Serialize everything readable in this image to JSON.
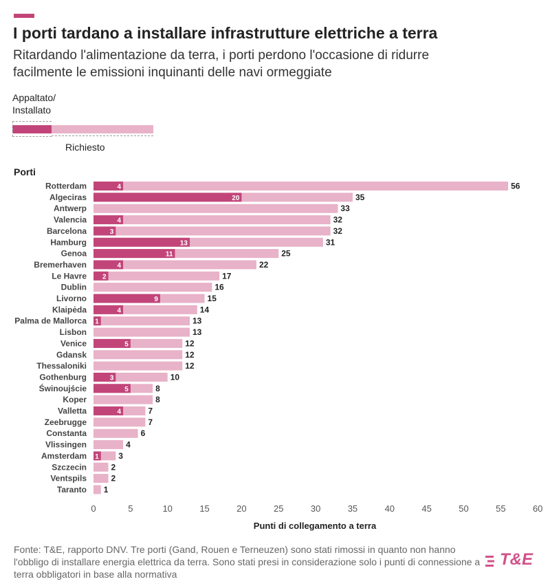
{
  "header": {
    "title": "I porti tardano a installare infrastrutture elettriche a terra",
    "subtitle": "Ritardando l'alimentazione da terra, i porti perdono l'occasione di ridurre facilmente le emissioni inquinanti delle navi ormeggiate"
  },
  "legend": {
    "top_label": "Appaltato/\nInstallato",
    "bottom_label": "Richiesto"
  },
  "colors": {
    "accent": "#c2457a",
    "installed": "#c2457a",
    "requested": "#e8b2c8"
  },
  "chart_data": {
    "type": "bar",
    "orientation": "horizontal",
    "category_axis_label": "Porti",
    "xlabel": "Punti di collegamento a terra",
    "xlim": [
      0,
      60
    ],
    "xticks": [
      0,
      5,
      10,
      15,
      20,
      25,
      30,
      35,
      40,
      45,
      50,
      55,
      60
    ],
    "categories": [
      "Rotterdam",
      "Algeciras",
      "Antwerp",
      "Valencia",
      "Barcelona",
      "Hamburg",
      "Genoa",
      "Bremerhaven",
      "Le Havre",
      "Dublin",
      "Livorno",
      "Klaipėda",
      "Palma de Mallorca",
      "Lisbon",
      "Venice",
      "Gdansk",
      "Thessaloniki",
      "Gothenburg",
      "Świnoujście",
      "Koper",
      "Valletta",
      "Zeebrugge",
      "Constanta",
      "Vlissingen",
      "Amsterdam",
      "Szczecin",
      "Ventspils",
      "Taranto"
    ],
    "series": [
      {
        "name": "Richiesto",
        "values": [
          56,
          35,
          33,
          32,
          32,
          31,
          25,
          22,
          17,
          16,
          15,
          14,
          13,
          13,
          12,
          12,
          12,
          10,
          8,
          8,
          7,
          7,
          6,
          4,
          3,
          2,
          2,
          1
        ]
      },
      {
        "name": "Appaltato/Installato",
        "values": [
          4,
          20,
          null,
          4,
          3,
          13,
          11,
          4,
          2,
          null,
          9,
          4,
          1,
          null,
          5,
          null,
          null,
          3,
          5,
          null,
          4,
          null,
          null,
          null,
          1,
          null,
          null,
          null
        ]
      }
    ],
    "grid": false,
    "legend_position": "top-left"
  },
  "source": {
    "text": "Fonte: T&E, rapporto DNV. Tre porti (Gand, Rouen e Terneuzen) sono stati rimossi in quanto non hanno l'obbligo di installare energia elettrica da terra. Sono stati presi in considerazione solo i punti di connessione a terra obbligatori in base alla normativa"
  },
  "logo": {
    "text": "T&E"
  }
}
